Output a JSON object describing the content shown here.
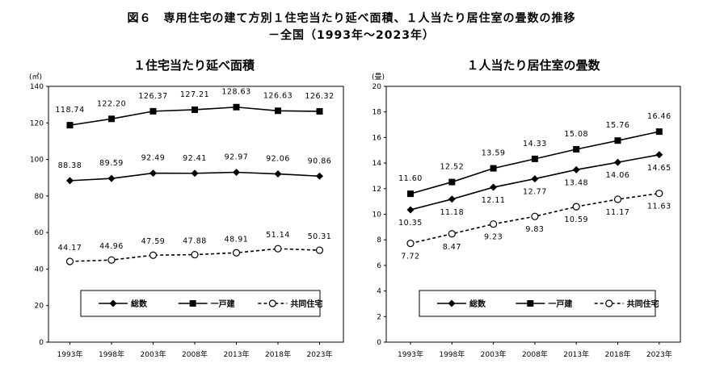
{
  "figure": {
    "title": "図６　専用住宅の建て方別１住宅当たり延べ面積、１人当たり居住室の畳数の推移",
    "subtitle": "－全国（1993年～2023年）"
  },
  "chart_data": [
    {
      "type": "line",
      "title": "１住宅当たり延べ面積",
      "unit": "(㎡)",
      "categories": [
        "1993年",
        "1998年",
        "2003年",
        "2008年",
        "2013年",
        "2018年",
        "2023年"
      ],
      "ylim": [
        0,
        140
      ],
      "yticks": [
        "0",
        "20",
        "40",
        "60",
        "80",
        "100",
        "120",
        "140"
      ],
      "legend_position": "inside-bottom",
      "series": [
        {
          "name": "総数",
          "marker": "diamond",
          "dash": false,
          "color": "#000000",
          "values": [
            88.38,
            89.59,
            92.49,
            92.41,
            92.97,
            92.06,
            90.86
          ],
          "labels": [
            "88.38",
            "89.59",
            "92.49",
            "92.41",
            "92.97",
            "92.06",
            "90.86"
          ]
        },
        {
          "name": "一戸建",
          "marker": "square",
          "dash": false,
          "color": "#000000",
          "values": [
            118.74,
            122.2,
            126.37,
            127.21,
            128.63,
            126.63,
            126.32
          ],
          "labels": [
            "118.74",
            "122.20",
            "126.37",
            "127.21",
            "128.63",
            "126.63",
            "126.32"
          ]
        },
        {
          "name": "共同住宅",
          "marker": "circle-open",
          "dash": true,
          "color": "#000000",
          "values": [
            44.17,
            44.96,
            47.59,
            47.88,
            48.91,
            51.14,
            50.31
          ],
          "labels": [
            "44.17",
            "44.96",
            "47.59",
            "47.88",
            "48.91",
            "51.14",
            "50.31"
          ]
        }
      ]
    },
    {
      "type": "line",
      "title": "１人当たり居住室の畳数",
      "unit": "(畳)",
      "categories": [
        "1993年",
        "1998年",
        "2003年",
        "2008年",
        "2013年",
        "2018年",
        "2023年"
      ],
      "ylim": [
        0,
        20
      ],
      "yticks": [
        "0",
        "2",
        "4",
        "6",
        "8",
        "10",
        "12",
        "14",
        "16",
        "18",
        "20"
      ],
      "legend_position": "inside-bottom",
      "series": [
        {
          "name": "総数",
          "marker": "diamond",
          "dash": false,
          "color": "#000000",
          "values": [
            10.35,
            11.18,
            12.11,
            12.77,
            13.48,
            14.06,
            14.65
          ],
          "labels": [
            "10.35",
            "11.18",
            "12.11",
            "12.77",
            "13.48",
            "14.06",
            "14.65"
          ]
        },
        {
          "name": "一戸建",
          "marker": "square",
          "dash": false,
          "color": "#000000",
          "values": [
            11.6,
            12.52,
            13.59,
            14.33,
            15.08,
            15.76,
            16.46
          ],
          "labels": [
            "11.60",
            "12.52",
            "13.59",
            "14.33",
            "15.08",
            "15.76",
            "16.46"
          ]
        },
        {
          "name": "共同住宅",
          "marker": "circle-open",
          "dash": true,
          "color": "#000000",
          "values": [
            7.72,
            8.47,
            9.23,
            9.83,
            10.59,
            11.17,
            11.63
          ],
          "labels": [
            "7.72",
            "8.47",
            "9.23",
            "9.83",
            "10.59",
            "11.17",
            "11.63"
          ]
        }
      ]
    }
  ]
}
